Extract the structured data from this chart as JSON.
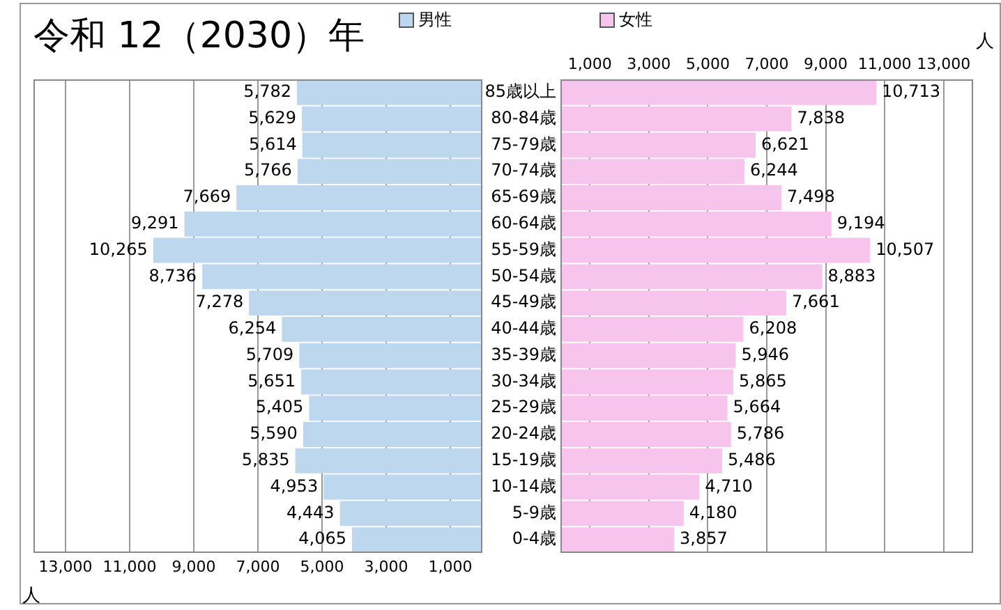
{
  "chart_data": [
    {
      "type": "bar",
      "orientation": "horizontal",
      "title": "令和 12（2030）年",
      "xlabel": "人",
      "categories": [
        null,
        null,
        null,
        null,
        null,
        null,
        null,
        null,
        null,
        null,
        null,
        null,
        null,
        null,
        null,
        null,
        null,
        null
      ],
      "series": [
        {
          "name": "男性",
          "color": "#bdd7ee",
          "values": [
            5782,
            5629,
            5614,
            5766,
            7669,
            9291,
            10265,
            8736,
            7278,
            6254,
            5709,
            5651,
            5405,
            5590,
            5835,
            4953,
            4443,
            4065
          ],
          "value_labels": [
            "5,782",
            "5,629",
            "5,614",
            "5,766",
            "7,669",
            "9,291",
            "10,265",
            "8,736",
            "7,278",
            "6,254",
            "5,709",
            "5,651",
            "5,405",
            "5,590",
            "5,835",
            "4,953",
            "4,443",
            "4,065"
          ]
        }
      ],
      "xlim": [
        14000,
        0
      ],
      "xticks": [
        {
          "value": 13000,
          "label": "13,000"
        },
        {
          "value": 11000,
          "label": "11,000"
        },
        {
          "value": 9000,
          "label": "9,000"
        },
        {
          "value": 7000,
          "label": "7,000"
        },
        {
          "value": 5000,
          "label": "5,000"
        },
        {
          "value": 3000,
          "label": "3,000"
        },
        {
          "value": 1000,
          "label": "1,000"
        }
      ],
      "grid": "x",
      "legend": "top",
      "tick_labels": "x"
    },
    {
      "type": "bar",
      "orientation": "horizontal",
      "xlabel": "人",
      "categories": [
        "85歳以上",
        "80-84歳",
        "75-79歳",
        "70-74歳",
        "65-69歳",
        "60-64歳",
        "55-59歳",
        "50-54歳",
        "45-49歳",
        "40-44歳",
        "35-39歳",
        "30-34歳",
        "25-29歳",
        "20-24歳",
        "15-19歳",
        "10-14歳",
        "5-9歳",
        "0-4歳"
      ],
      "series": [
        {
          "name": "女性",
          "color": "#f7c4ee",
          "values": [
            10713,
            7838,
            6621,
            6244,
            7498,
            9194,
            10507,
            8883,
            7661,
            6208,
            5946,
            5865,
            5664,
            5786,
            5486,
            4710,
            4180,
            3857
          ],
          "value_labels": [
            "10,713",
            "7,838",
            "6,621",
            "6,244",
            "7,498",
            "9,194",
            "10,507",
            "8,883",
            "7,661",
            "6,208",
            "5,946",
            "5,865",
            "5,664",
            "5,786",
            "5,486",
            "4,710",
            "4,180",
            "3,857"
          ]
        }
      ],
      "xlim": [
        0,
        14000
      ],
      "xticks": [
        {
          "value": 1000,
          "label": "1,000"
        },
        {
          "value": 3000,
          "label": "3,000"
        },
        {
          "value": 5000,
          "label": "5,000"
        },
        {
          "value": 7000,
          "label": "7,000"
        },
        {
          "value": 9000,
          "label": "9,000"
        },
        {
          "value": 11000,
          "label": "11,000"
        },
        {
          "value": 13000,
          "label": "13,000"
        }
      ],
      "grid": "x",
      "legend": "top"
    }
  ]
}
